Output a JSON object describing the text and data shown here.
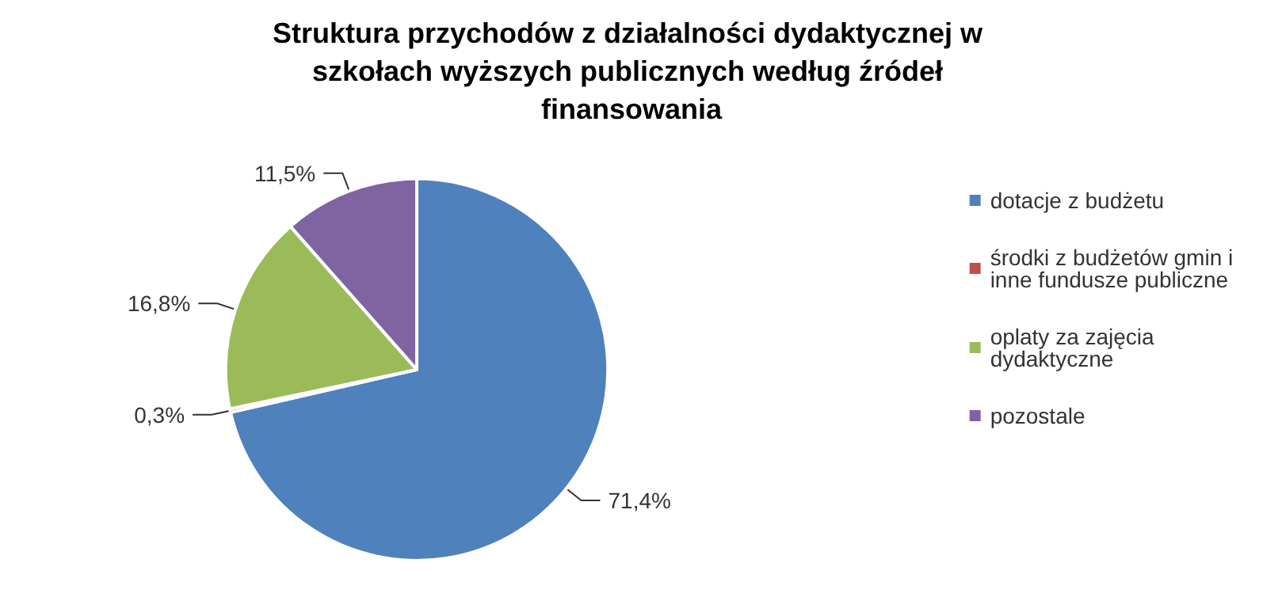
{
  "chart_data": {
    "type": "pie",
    "title": "Struktura przychodów z działalności dydaktycznej w szkołach wyższych publicznych według źródeł finansowania",
    "categories": [
      "dotacje z budżetu",
      "środki z budżetów gmin i inne fundusze publiczne",
      "oplaty za zajęcia dydaktyczne",
      "pozostale"
    ],
    "values": [
      71.4,
      0.3,
      16.8,
      11.5
    ],
    "value_labels": [
      "71,4%",
      "0,3%",
      "16,8%",
      "11,5%"
    ],
    "colors": [
      "#4f81bd",
      "#c0504d",
      "#9bbb59",
      "#8064a2"
    ],
    "legend": "right"
  }
}
